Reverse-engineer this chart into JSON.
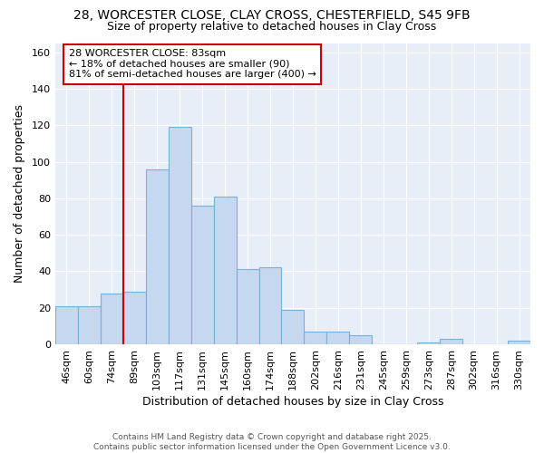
{
  "title_line1": "28, WORCESTER CLOSE, CLAY CROSS, CHESTERFIELD, S45 9FB",
  "title_line2": "Size of property relative to detached houses in Clay Cross",
  "xlabel": "Distribution of detached houses by size in Clay Cross",
  "ylabel": "Number of detached properties",
  "bar_labels": [
    "46sqm",
    "60sqm",
    "74sqm",
    "89sqm",
    "103sqm",
    "117sqm",
    "131sqm",
    "145sqm",
    "160sqm",
    "174sqm",
    "188sqm",
    "202sqm",
    "216sqm",
    "231sqm",
    "245sqm",
    "259sqm",
    "273sqm",
    "287sqm",
    "302sqm",
    "316sqm",
    "330sqm"
  ],
  "bar_values": [
    21,
    21,
    28,
    29,
    96,
    119,
    76,
    81,
    41,
    42,
    19,
    7,
    7,
    5,
    0,
    0,
    1,
    3,
    0,
    0,
    2
  ],
  "bar_color": "#c5d8f0",
  "bar_edgecolor": "#7ab0d8",
  "vline_color": "#cc0000",
  "annotation_text": "28 WORCESTER CLOSE: 83sqm\n← 18% of detached houses are smaller (90)\n81% of semi-detached houses are larger (400) →",
  "annotation_box_color": "#cc0000",
  "ylim": [
    0,
    165
  ],
  "yticks": [
    0,
    20,
    40,
    60,
    80,
    100,
    120,
    140,
    160
  ],
  "background_color": "#e8eef8",
  "footer_text": "Contains HM Land Registry data © Crown copyright and database right 2025.\nContains public sector information licensed under the Open Government Licence v3.0.",
  "title_fontsize": 10,
  "subtitle_fontsize": 9,
  "xlabel_fontsize": 9,
  "ylabel_fontsize": 9,
  "tick_fontsize": 8,
  "annotation_fontsize": 8
}
